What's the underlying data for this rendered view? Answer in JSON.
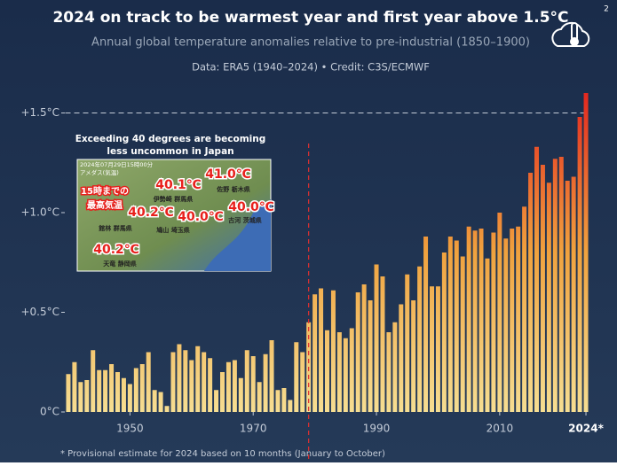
{
  "page_number": "2",
  "chart_data": {
    "type": "bar",
    "title": "2024 on track to be warmest year and first year above 1.5°C",
    "subtitle": "Annual global temperature anomalies relative to pre-industrial (1850–1900)",
    "credit": "Data: ERA5 (1940–2024) • Credit: C3S/ECMWF",
    "footnote": "* Provisional estimate for 2024 based on 10 months (January to October)",
    "x": [
      1940,
      1941,
      1942,
      1943,
      1944,
      1945,
      1946,
      1947,
      1948,
      1949,
      1950,
      1951,
      1952,
      1953,
      1954,
      1955,
      1956,
      1957,
      1958,
      1959,
      1960,
      1961,
      1962,
      1963,
      1964,
      1965,
      1966,
      1967,
      1968,
      1969,
      1970,
      1971,
      1972,
      1973,
      1974,
      1975,
      1976,
      1977,
      1978,
      1979,
      1980,
      1981,
      1982,
      1983,
      1984,
      1985,
      1986,
      1987,
      1988,
      1989,
      1990,
      1991,
      1992,
      1993,
      1994,
      1995,
      1996,
      1997,
      1998,
      1999,
      2000,
      2001,
      2002,
      2003,
      2004,
      2005,
      2006,
      2007,
      2008,
      2009,
      2010,
      2011,
      2012,
      2013,
      2014,
      2015,
      2016,
      2017,
      2018,
      2019,
      2020,
      2021,
      2022,
      2023,
      2024
    ],
    "values": [
      0.19,
      0.25,
      0.15,
      0.16,
      0.31,
      0.21,
      0.21,
      0.24,
      0.2,
      0.17,
      0.14,
      0.22,
      0.24,
      0.3,
      0.11,
      0.1,
      0.03,
      0.3,
      0.34,
      0.31,
      0.26,
      0.33,
      0.3,
      0.27,
      0.11,
      0.2,
      0.25,
      0.26,
      0.17,
      0.31,
      0.28,
      0.15,
      0.29,
      0.36,
      0.11,
      0.12,
      0.06,
      0.35,
      0.3,
      0.45,
      0.59,
      0.62,
      0.41,
      0.61,
      0.4,
      0.37,
      0.42,
      0.6,
      0.64,
      0.56,
      0.74,
      0.68,
      0.4,
      0.45,
      0.54,
      0.69,
      0.56,
      0.73,
      0.88,
      0.63,
      0.63,
      0.8,
      0.88,
      0.86,
      0.78,
      0.93,
      0.91,
      0.92,
      0.77,
      0.9,
      1.0,
      0.87,
      0.92,
      0.93,
      1.03,
      1.2,
      1.33,
      1.24,
      1.15,
      1.27,
      1.28,
      1.16,
      1.18,
      1.48,
      1.6
    ],
    "gradient": [
      "#f6de92",
      "#f0a23e",
      "#e4281f"
    ],
    "xlim": [
      1939.5,
      2024.5
    ],
    "xticks": [
      1950,
      1970,
      1990,
      2010,
      {
        "value": 2024,
        "label": "2024*"
      }
    ],
    "ylim": [
      0,
      1.6
    ],
    "yticks": [
      {
        "value": 0,
        "label": "0°C"
      },
      {
        "value": 0.5,
        "label": "+0.5°C"
      },
      {
        "value": 1.0,
        "label": "+1.0°C"
      },
      {
        "value": 1.5,
        "label": "+1.5°C"
      }
    ],
    "reference_line": 1.5,
    "vline": 1979
  },
  "inset": {
    "caption": [
      "Exceeding 40 degrees are becoming",
      "less uncommon in Japan"
    ],
    "header": [
      "2024年07月29日15時00分",
      "アメダス(気温)"
    ],
    "labels": [
      {
        "text": "41.0℃",
        "kind": "temp"
      },
      {
        "text": "15時までの",
        "kind": "box"
      },
      {
        "text": "最高気温",
        "kind": "box"
      },
      {
        "text": "40.1℃",
        "kind": "temp"
      },
      {
        "text": "佐野 栃木県",
        "kind": "place"
      },
      {
        "text": "伊勢崎 群馬県",
        "kind": "place"
      },
      {
        "text": "40.2℃",
        "kind": "temp"
      },
      {
        "text": "40.0℃",
        "kind": "temp"
      },
      {
        "text": "40.0℃",
        "kind": "temp"
      },
      {
        "text": "古河 茨城県",
        "kind": "place"
      },
      {
        "text": "館林 群馬県",
        "kind": "place"
      },
      {
        "text": "鳩山 埼玉県",
        "kind": "place"
      },
      {
        "text": "40.2℃",
        "kind": "temp"
      },
      {
        "text": "天竜 静岡県",
        "kind": "place"
      }
    ]
  }
}
